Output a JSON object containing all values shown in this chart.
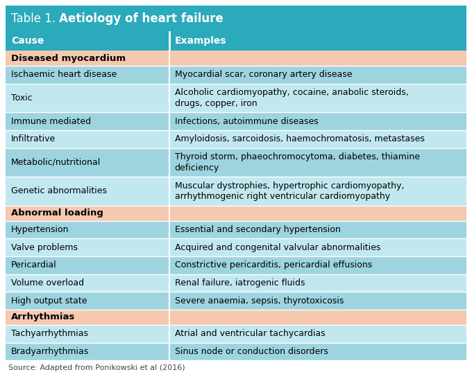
{
  "title_prefix": "Table 1. ",
  "title_bold": "Aetiology of heart failure",
  "title_bg": "#2AAABB",
  "title_text_color": "#FFFFFF",
  "header_bg": "#2AAABB",
  "header_text_color": "#FFFFFF",
  "col1_header": "Cause",
  "col2_header": "Examples",
  "section_bg": "#F5C8B0",
  "section_text_color": "#000000",
  "row_bg_A": "#9DD4DF",
  "row_bg_B": "#C2E8EF",
  "source_text": "Source: Adapted from Ponikowski et al (2016)",
  "col_split": 0.355,
  "fig_w": 6.8,
  "fig_h": 5.5,
  "dpi": 100,
  "rows": [
    {
      "type": "section",
      "col1": "Diseased myocardium",
      "col2": "",
      "lines": 1
    },
    {
      "type": "data",
      "col1": "Ischaemic heart disease",
      "col2": "Myocardial scar, coronary artery disease",
      "lines": 1
    },
    {
      "type": "data",
      "col1": "Toxic",
      "col2": "Alcoholic cardiomyopathy, cocaine, anabolic steroids,\ndrugs, copper, iron",
      "lines": 2
    },
    {
      "type": "data",
      "col1": "Immune mediated",
      "col2": "Infections, autoimmune diseases",
      "lines": 1
    },
    {
      "type": "data",
      "col1": "Infiltrative",
      "col2": "Amyloidosis, sarcoidosis, haemochromatosis, metastases",
      "lines": 1
    },
    {
      "type": "data",
      "col1": "Metabolic/nutritional",
      "col2": "Thyroid storm, phaeochromocytoma, diabetes, thiamine\ndeficiency",
      "lines": 2
    },
    {
      "type": "data",
      "col1": "Genetic abnormalities",
      "col2": "Muscular dystrophies, hypertrophic cardiomyopathy,\narrhythmogenic right ventricular cardiomyopathy",
      "lines": 2
    },
    {
      "type": "section",
      "col1": "Abnormal loading",
      "col2": "",
      "lines": 1
    },
    {
      "type": "data",
      "col1": "Hypertension",
      "col2": "Essential and secondary hypertension",
      "lines": 1
    },
    {
      "type": "data",
      "col1": "Valve problems",
      "col2": "Acquired and congenital valvular abnormalities",
      "lines": 1
    },
    {
      "type": "data",
      "col1": "Pericardial",
      "col2": "Constrictive pericarditis, pericardial effusions",
      "lines": 1
    },
    {
      "type": "data",
      "col1": "Volume overload",
      "col2": "Renal failure, iatrogenic fluids",
      "lines": 1
    },
    {
      "type": "data",
      "col1": "High output state",
      "col2": "Severe anaemia, sepsis, thyrotoxicosis",
      "lines": 1
    },
    {
      "type": "section",
      "col1": "Arrhythmias",
      "col2": "",
      "lines": 1
    },
    {
      "type": "data",
      "col1": "Tachyarrhythmias",
      "col2": "Atrial and ventricular tachycardias",
      "lines": 1
    },
    {
      "type": "data",
      "col1": "Bradyarrhythmias",
      "col2": "Sinus node or conduction disorders",
      "lines": 1
    }
  ]
}
